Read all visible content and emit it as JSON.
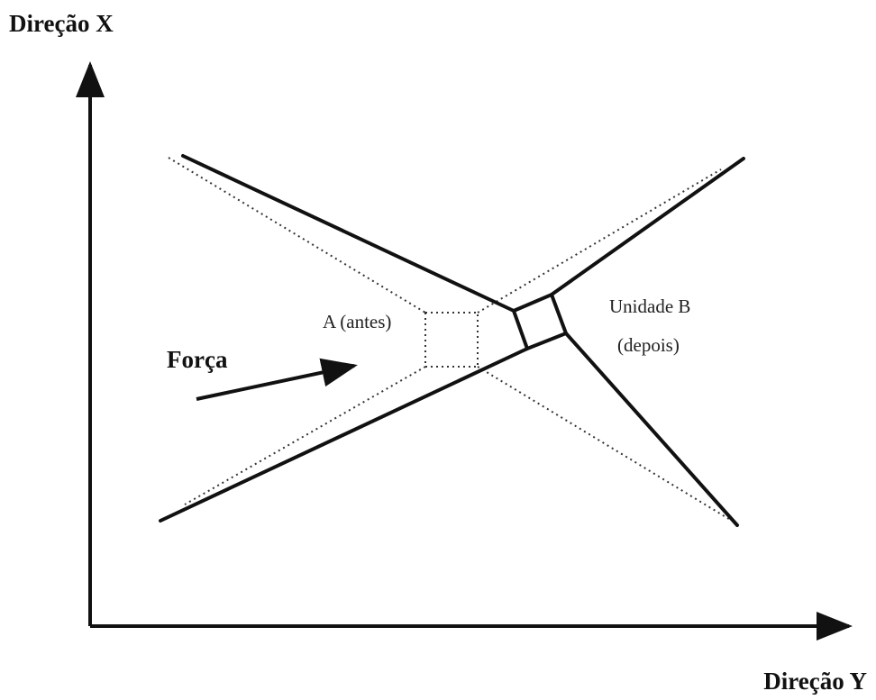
{
  "axes": {
    "x_label": "Direção X",
    "y_label": "Direção Y"
  },
  "labels": {
    "force": "Força",
    "before": "A (antes)",
    "after_title": "Unidade B",
    "after_note": "(depois)"
  }
}
